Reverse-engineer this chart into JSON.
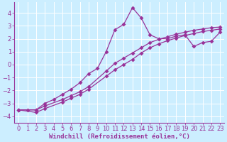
{
  "background_color": "#cceeff",
  "grid_color": "#ffffff",
  "line_color": "#993399",
  "markersize": 3,
  "linewidth": 0.9,
  "xlabel": "Windchill (Refroidissement éolien,°C)",
  "xlabel_fontsize": 6.5,
  "tick_fontsize": 6,
  "xlim": [
    -0.5,
    23.5
  ],
  "ylim": [
    -4.5,
    4.8
  ],
  "yticks": [
    -4,
    -3,
    -2,
    -1,
    0,
    1,
    2,
    3,
    4
  ],
  "xticks": [
    0,
    1,
    2,
    3,
    4,
    5,
    6,
    7,
    8,
    9,
    10,
    11,
    12,
    13,
    14,
    15,
    16,
    17,
    18,
    19,
    20,
    21,
    22,
    23
  ],
  "series1_x": [
    0,
    1,
    2,
    3,
    4,
    5,
    6,
    7,
    8,
    9,
    10,
    11,
    12,
    13,
    14,
    15,
    16,
    17,
    18,
    19,
    20,
    21,
    22,
    23
  ],
  "series1_y": [
    -3.5,
    -3.5,
    -3.5,
    -3.0,
    -2.7,
    -2.3,
    -1.9,
    -1.4,
    -0.7,
    -0.3,
    1.0,
    2.7,
    3.1,
    4.4,
    3.6,
    2.3,
    2.0,
    2.0,
    2.2,
    2.3,
    1.4,
    1.7,
    1.8,
    2.5
  ],
  "series2_x": [
    0,
    2,
    3,
    5,
    6,
    7,
    8,
    10,
    11,
    12,
    13,
    14,
    15,
    16,
    17,
    18,
    19,
    20,
    21,
    22,
    23
  ],
  "series2_y": [
    -3.5,
    -3.5,
    -3.2,
    -2.7,
    -2.4,
    -2.1,
    -1.7,
    -0.5,
    0.1,
    0.5,
    0.9,
    1.3,
    1.7,
    1.95,
    2.15,
    2.35,
    2.5,
    2.65,
    2.75,
    2.85,
    2.9
  ],
  "series3_x": [
    0,
    2,
    3,
    5,
    6,
    7,
    8,
    10,
    11,
    12,
    13,
    14,
    15,
    16,
    17,
    18,
    19,
    20,
    21,
    22,
    23
  ],
  "series3_y": [
    -3.5,
    -3.7,
    -3.4,
    -2.9,
    -2.6,
    -2.3,
    -1.9,
    -0.9,
    -0.4,
    0.0,
    0.4,
    0.9,
    1.3,
    1.6,
    1.85,
    2.05,
    2.25,
    2.4,
    2.55,
    2.65,
    2.75
  ]
}
